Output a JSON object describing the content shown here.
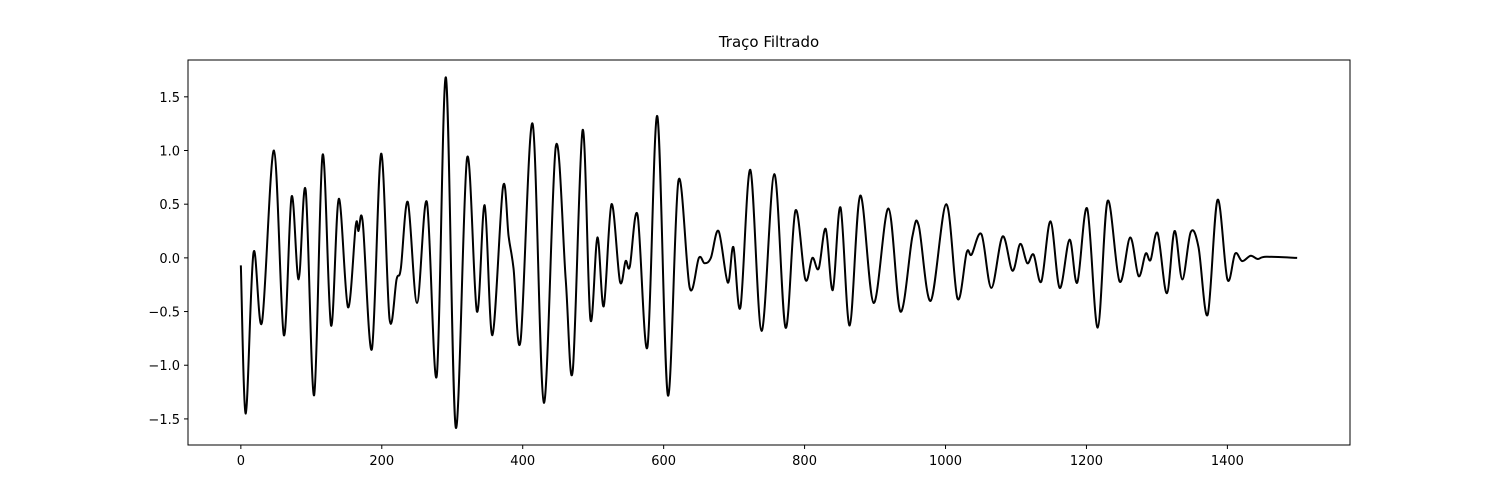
{
  "chart_data": {
    "type": "line",
    "title": "Traço Filtrado",
    "x": [
      0,
      7,
      18,
      30,
      47,
      61,
      72,
      82,
      92,
      104,
      116,
      128,
      139,
      152,
      163,
      167,
      173,
      186,
      199,
      211,
      221,
      227,
      237,
      250,
      264,
      278,
      291,
      305,
      321,
      335,
      346,
      357,
      372,
      380,
      387,
      397,
      414,
      430,
      447,
      461,
      471,
      485,
      496,
      506,
      515,
      526,
      538,
      546,
      552,
      563,
      577,
      591,
      606,
      621,
      637,
      650,
      658,
      667,
      678,
      691,
      699,
      709,
      723,
      739,
      757,
      773,
      787,
      801,
      811,
      820,
      830,
      840,
      851,
      864,
      879,
      898,
      919,
      936,
      953,
      962,
      979,
      1001,
      1017,
      1030,
      1037,
      1051,
      1065,
      1081,
      1095,
      1106,
      1116,
      1125,
      1136,
      1149,
      1162,
      1176,
      1187,
      1201,
      1216,
      1230,
      1247,
      1262,
      1274,
      1284,
      1291,
      1301,
      1314,
      1325,
      1336,
      1348,
      1359,
      1372,
      1386,
      1400,
      1411,
      1421,
      1433,
      1443,
      1455,
      1499
    ],
    "series": [
      {
        "color": "#000000",
        "values": [
          -0.07,
          -1.45,
          0.05,
          -0.6,
          1.0,
          -0.72,
          0.57,
          -0.2,
          0.63,
          -1.28,
          0.96,
          -0.63,
          0.55,
          -0.46,
          0.3,
          0.25,
          0.33,
          -0.85,
          0.97,
          -0.57,
          -0.2,
          -0.1,
          0.52,
          -0.42,
          0.52,
          -1.1,
          1.68,
          -1.58,
          0.93,
          -0.5,
          0.49,
          -0.72,
          0.66,
          0.2,
          -0.1,
          -0.77,
          1.25,
          -1.35,
          1.04,
          -0.2,
          -1.05,
          1.19,
          -0.57,
          0.19,
          -0.45,
          0.5,
          -0.22,
          -0.03,
          -0.08,
          0.4,
          -0.83,
          1.32,
          -1.28,
          0.72,
          -0.28,
          0.0,
          -0.05,
          0.0,
          0.25,
          -0.23,
          0.1,
          -0.46,
          0.82,
          -0.68,
          0.78,
          -0.65,
          0.44,
          -0.2,
          0.0,
          -0.1,
          0.27,
          -0.3,
          0.47,
          -0.63,
          0.58,
          -0.42,
          0.46,
          -0.5,
          0.2,
          0.3,
          -0.4,
          0.5,
          -0.38,
          0.05,
          0.03,
          0.22,
          -0.28,
          0.2,
          -0.12,
          0.13,
          -0.05,
          0.03,
          -0.22,
          0.34,
          -0.28,
          0.17,
          -0.23,
          0.46,
          -0.65,
          0.53,
          -0.22,
          0.19,
          -0.17,
          0.04,
          -0.02,
          0.23,
          -0.33,
          0.25,
          -0.2,
          0.24,
          0.1,
          -0.53,
          0.54,
          -0.2,
          0.04,
          -0.03,
          0.02,
          -0.01,
          0.01,
          0.0
        ]
      }
    ],
    "xlim": [
      -75,
      1574
    ],
    "ylim": [
      -1.743,
      1.843
    ],
    "xticks": [
      0,
      200,
      400,
      600,
      800,
      1000,
      1200,
      1400
    ],
    "yticks": [
      {
        "value": -1.5,
        "label": "−1.5"
      },
      {
        "value": -1.0,
        "label": "−1.0"
      },
      {
        "value": -0.5,
        "label": "−0.5"
      },
      {
        "value": 0.0,
        "label": "0.0"
      },
      0.5,
      {
        "value": 1.0,
        "label": "1.0"
      },
      1.5
    ],
    "grid": false
  }
}
